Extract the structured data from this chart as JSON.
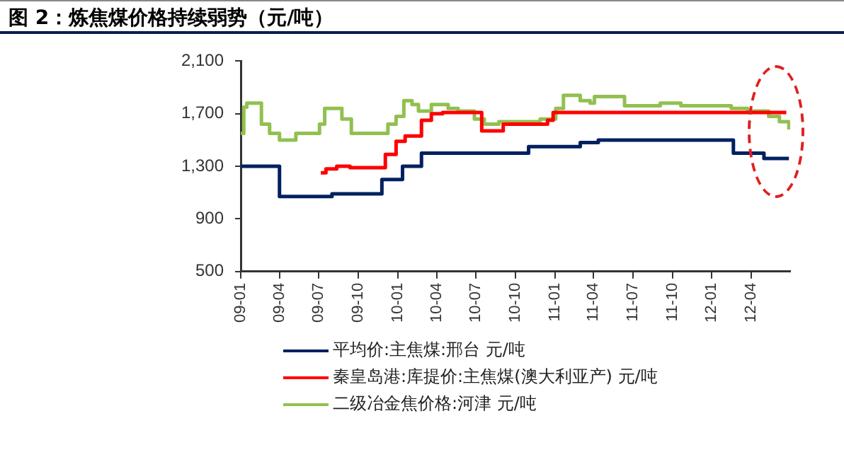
{
  "chart_data": {
    "type": "step",
    "title": "图 2：炼焦煤价格持续弱势（元/吨）",
    "xlim": [
      "2009-01-01",
      "2012-07-01"
    ],
    "xticks": [
      {
        "value": "2009-01-01",
        "label": "09-01"
      },
      {
        "value": "2009-04-01",
        "label": "09-04"
      },
      {
        "value": "2009-07-01",
        "label": "09-07"
      },
      {
        "value": "2009-10-01",
        "label": "09-10"
      },
      {
        "value": "2010-01-01",
        "label": "10-01"
      },
      {
        "value": "2010-04-01",
        "label": "10-04"
      },
      {
        "value": "2010-07-01",
        "label": "10-07"
      },
      {
        "value": "2010-10-01",
        "label": "10-10"
      },
      {
        "value": "2011-01-01",
        "label": "11-01"
      },
      {
        "value": "2011-04-01",
        "label": "11-04"
      },
      {
        "value": "2011-07-01",
        "label": "11-07"
      },
      {
        "value": "2011-10-01",
        "label": "11-10"
      },
      {
        "value": "2012-01-01",
        "label": "12-01"
      },
      {
        "value": "2012-04-01",
        "label": "12-04"
      }
    ],
    "ylim": [
      500,
      2100
    ],
    "yticks": [
      500,
      900,
      {
        "value": 1300,
        "label": "1,300"
      },
      {
        "value": 1700,
        "label": "1,700"
      },
      {
        "value": 2100,
        "label": "2,100"
      }
    ],
    "grid": false,
    "legend": "bottom",
    "marker": "none",
    "line_style": "solid",
    "series": [
      {
        "name": "平均价:主焦煤:邢台 元/吨",
        "color": "#002060",
        "x": [
          "2009-01-01",
          "2009-04-01",
          "2009-08-01",
          "2009-11-25",
          "2010-01-12",
          "2010-02-25",
          "2010-11-01",
          "2011-03-01",
          "2011-04-12",
          "2012-02-20",
          "2012-05-01",
          "2012-06-28"
        ],
        "values": [
          1300,
          1070,
          1090,
          1200,
          1300,
          1400,
          1450,
          1480,
          1500,
          1400,
          1360,
          1360
        ]
      },
      {
        "name": "秦皇岛港:库提价:主焦煤(澳大利亚产) 元/吨",
        "color": "#ff0000",
        "x": [
          "2009-07-06",
          "2009-07-18",
          "2009-08-12",
          "2009-09-12",
          "2009-12-03",
          "2009-12-28",
          "2010-01-18",
          "2010-02-25",
          "2010-03-20",
          "2010-04-15",
          "2010-07-15",
          "2010-09-03",
          "2010-12-15",
          "2010-12-28",
          "2012-06-22"
        ],
        "values": [
          1250,
          1280,
          1300,
          1290,
          1390,
          1490,
          1530,
          1650,
          1700,
          1710,
          1570,
          1620,
          1650,
          1710,
          1710
        ]
      },
      {
        "name": "二级冶金焦价格:河津 元/吨",
        "color": "#92c050",
        "x": [
          "2009-01-01",
          "2009-01-08",
          "2009-01-15",
          "2009-02-18",
          "2009-03-09",
          "2009-04-01",
          "2009-05-09",
          "2009-07-03",
          "2009-07-15",
          "2009-08-24",
          "2009-09-15",
          "2009-12-09",
          "2009-12-28",
          "2010-01-15",
          "2010-02-03",
          "2010-02-18",
          "2010-03-20",
          "2010-04-28",
          "2010-05-21",
          "2010-06-28",
          "2010-07-21",
          "2010-08-24",
          "2010-11-28",
          "2011-01-03",
          "2011-01-21",
          "2011-03-01",
          "2011-03-24",
          "2011-04-03",
          "2011-06-12",
          "2011-09-03",
          "2011-10-21",
          "2012-02-15",
          "2012-03-24",
          "2012-05-12",
          "2012-06-06",
          "2012-06-28"
        ],
        "values": [
          1550,
          1750,
          1780,
          1620,
          1550,
          1500,
          1550,
          1620,
          1740,
          1660,
          1550,
          1620,
          1680,
          1800,
          1770,
          1720,
          1770,
          1740,
          1720,
          1660,
          1620,
          1640,
          1660,
          1740,
          1840,
          1800,
          1780,
          1830,
          1760,
          1780,
          1760,
          1740,
          1720,
          1680,
          1640,
          1580
        ]
      }
    ]
  }
}
